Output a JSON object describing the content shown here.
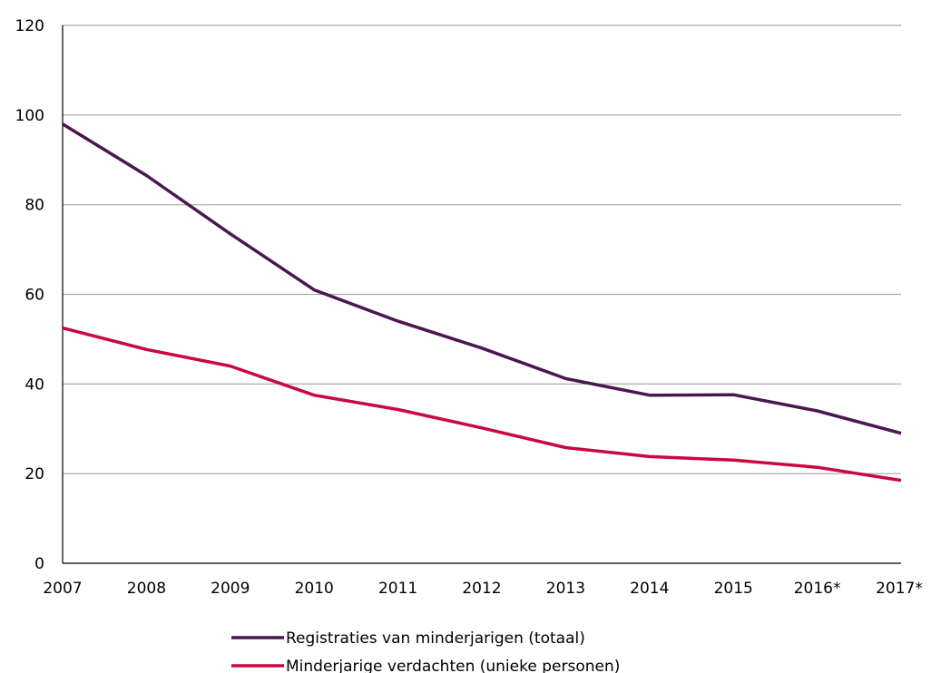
{
  "chart_data": {
    "type": "line",
    "categories": [
      "2007",
      "2008",
      "2009",
      "2010",
      "2011",
      "2012",
      "2013",
      "2014",
      "2015",
      "2016*",
      "2017*"
    ],
    "series": [
      {
        "name": "Registraties van minderjarigen (totaal)",
        "color": "#4a1650",
        "values": [
          98,
          86.5,
          73.5,
          61,
          54,
          48,
          41.2,
          37.5,
          37.6,
          34,
          29
        ]
      },
      {
        "name": "Minderjarige verdachten (unieke personen)",
        "color": "#c8083e",
        "values": [
          52.5,
          47.7,
          44,
          37.5,
          34.3,
          30.2,
          25.8,
          23.8,
          23,
          21.4,
          18.5
        ]
      }
    ],
    "ylim": [
      0,
      120
    ],
    "yticks": [
      "0",
      "20",
      "40",
      "60",
      "80",
      "100",
      "120"
    ],
    "grid": true,
    "legend_position": "bottom"
  }
}
